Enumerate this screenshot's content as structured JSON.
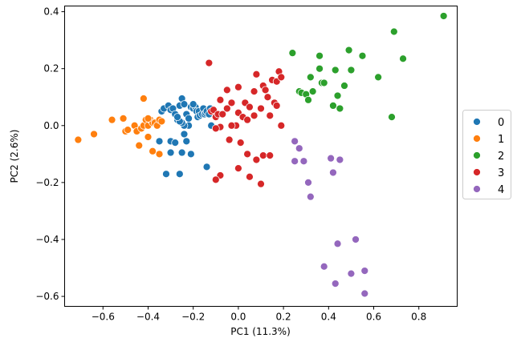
{
  "chart_data": {
    "type": "scatter",
    "title": "",
    "xlabel": "PC1 (11.3%)",
    "ylabel": "PC2 (2.6%)",
    "xlim": [
      -0.77,
      0.97
    ],
    "ylim": [
      -0.635,
      0.42
    ],
    "xticks": [
      -0.6,
      -0.4,
      -0.2,
      0.0,
      0.2,
      0.4,
      0.6,
      0.8
    ],
    "xtick_labels": [
      "−0.6",
      "−0.4",
      "−0.2",
      "0.0",
      "0.2",
      "0.4",
      "0.6",
      "0.8"
    ],
    "yticks": [
      -0.6,
      -0.4,
      -0.2,
      0.0,
      0.2,
      0.4
    ],
    "ytick_labels": [
      "−0.6",
      "−0.4",
      "−0.2",
      "0.0",
      "0.2",
      "0.4"
    ],
    "grid": false,
    "legend_position": "right-outside",
    "series": [
      {
        "name": "0",
        "color": "#1f77b4",
        "points": [
          [
            -0.34,
            0.05
          ],
          [
            -0.33,
            0.06
          ],
          [
            -0.31,
            0.07
          ],
          [
            -0.3,
            0.055
          ],
          [
            -0.29,
            0.06
          ],
          [
            -0.28,
            0.04
          ],
          [
            -0.27,
            0.02
          ],
          [
            -0.26,
            0.07
          ],
          [
            -0.25,
            0.095
          ],
          [
            -0.24,
            0.075
          ],
          [
            -0.23,
            0.04
          ],
          [
            -0.22,
            0.025
          ],
          [
            -0.21,
            0.065
          ],
          [
            -0.2,
            0.06
          ],
          [
            -0.19,
            0.065
          ],
          [
            -0.185,
            0.05
          ],
          [
            -0.18,
            0.03
          ],
          [
            -0.175,
            0.05
          ],
          [
            -0.17,
            0.035
          ],
          [
            -0.16,
            0.04
          ],
          [
            -0.155,
            0.06
          ],
          [
            -0.15,
            0.04
          ],
          [
            -0.145,
            0.045
          ],
          [
            -0.14,
            0.05
          ],
          [
            -0.13,
            0.04
          ],
          [
            -0.125,
            0.06
          ],
          [
            -0.2,
            0.075
          ],
          [
            -0.22,
            0.0
          ],
          [
            -0.24,
            0.0
          ],
          [
            -0.25,
            0.01
          ],
          [
            -0.26,
            0.015
          ],
          [
            -0.27,
            0.03
          ],
          [
            -0.3,
            -0.055
          ],
          [
            -0.28,
            -0.06
          ],
          [
            -0.23,
            -0.055
          ],
          [
            -0.35,
            -0.055
          ],
          [
            -0.3,
            -0.095
          ],
          [
            -0.25,
            -0.095
          ],
          [
            -0.21,
            -0.1
          ],
          [
            -0.24,
            -0.03
          ],
          [
            -0.32,
            -0.17
          ],
          [
            -0.26,
            -0.17
          ],
          [
            -0.14,
            -0.145
          ],
          [
            -0.12,
            0.0
          ]
        ]
      },
      {
        "name": "1",
        "color": "#ff7f0e",
        "points": [
          [
            -0.71,
            -0.05
          ],
          [
            -0.64,
            -0.03
          ],
          [
            -0.56,
            0.02
          ],
          [
            -0.51,
            0.025
          ],
          [
            -0.5,
            -0.02
          ],
          [
            -0.49,
            -0.015
          ],
          [
            -0.46,
            0.0
          ],
          [
            -0.45,
            -0.02
          ],
          [
            -0.43,
            -0.01
          ],
          [
            -0.42,
            0.0
          ],
          [
            -0.41,
            0.02
          ],
          [
            -0.4,
            0.0
          ],
          [
            -0.39,
            0.02
          ],
          [
            -0.38,
            0.01
          ],
          [
            -0.37,
            0.01
          ],
          [
            -0.36,
            0.0
          ],
          [
            -0.35,
            0.02
          ],
          [
            -0.34,
            0.015
          ],
          [
            -0.4,
            0.025
          ],
          [
            -0.42,
            0.095
          ],
          [
            -0.44,
            -0.07
          ],
          [
            -0.4,
            -0.04
          ],
          [
            -0.38,
            -0.09
          ],
          [
            -0.35,
            -0.1
          ]
        ]
      },
      {
        "name": "2",
        "color": "#2ca02c",
        "points": [
          [
            0.24,
            0.255
          ],
          [
            0.27,
            0.12
          ],
          [
            0.28,
            0.115
          ],
          [
            0.3,
            0.11
          ],
          [
            0.31,
            0.09
          ],
          [
            0.32,
            0.17
          ],
          [
            0.33,
            0.12
          ],
          [
            0.36,
            0.245
          ],
          [
            0.36,
            0.2
          ],
          [
            0.37,
            0.15
          ],
          [
            0.38,
            0.15
          ],
          [
            0.42,
            0.07
          ],
          [
            0.43,
            0.195
          ],
          [
            0.44,
            0.105
          ],
          [
            0.45,
            0.06
          ],
          [
            0.47,
            0.14
          ],
          [
            0.49,
            0.265
          ],
          [
            0.5,
            0.195
          ],
          [
            0.55,
            0.245
          ],
          [
            0.62,
            0.17
          ],
          [
            0.68,
            0.03
          ],
          [
            0.69,
            0.33
          ],
          [
            0.73,
            0.235
          ],
          [
            0.91,
            0.385
          ]
        ]
      },
      {
        "name": "3",
        "color": "#d62728",
        "points": [
          [
            -0.13,
            0.22
          ],
          [
            -0.12,
            0.05
          ],
          [
            -0.11,
            0.055
          ],
          [
            -0.1,
            0.03
          ],
          [
            -0.09,
            0.04
          ],
          [
            -0.08,
            0.09
          ],
          [
            -0.07,
            0.04
          ],
          [
            -0.05,
            0.06
          ],
          [
            -0.05,
            0.125
          ],
          [
            -0.03,
            0.08
          ],
          [
            -0.01,
            0.0
          ],
          [
            0.0,
            0.045
          ],
          [
            0.0,
            0.135
          ],
          [
            0.02,
            0.03
          ],
          [
            0.03,
            0.08
          ],
          [
            0.04,
            0.02
          ],
          [
            0.05,
            0.065
          ],
          [
            0.07,
            0.035
          ],
          [
            0.08,
            0.18
          ],
          [
            0.1,
            0.06
          ],
          [
            0.11,
            0.14
          ],
          [
            0.12,
            0.125
          ],
          [
            0.13,
            0.1
          ],
          [
            0.14,
            0.035
          ],
          [
            0.15,
            0.16
          ],
          [
            0.16,
            0.08
          ],
          [
            0.17,
            0.155
          ],
          [
            0.18,
            0.19
          ],
          [
            0.19,
            0.17
          ],
          [
            0.17,
            0.07
          ],
          [
            0.19,
            0.0
          ],
          [
            -0.03,
            0.0
          ],
          [
            -0.08,
            -0.005
          ],
          [
            -0.1,
            -0.01
          ],
          [
            -0.04,
            -0.05
          ],
          [
            0.01,
            -0.06
          ],
          [
            0.04,
            -0.1
          ],
          [
            0.11,
            -0.105
          ],
          [
            0.14,
            -0.105
          ],
          [
            0.05,
            -0.18
          ],
          [
            0.1,
            -0.205
          ],
          [
            -0.08,
            -0.175
          ],
          [
            -0.1,
            -0.19
          ],
          [
            0.0,
            -0.15
          ],
          [
            0.08,
            -0.12
          ],
          [
            0.07,
            0.12
          ]
        ]
      },
      {
        "name": "4",
        "color": "#9467bd",
        "points": [
          [
            0.25,
            -0.055
          ],
          [
            0.27,
            -0.08
          ],
          [
            0.25,
            -0.125
          ],
          [
            0.29,
            -0.125
          ],
          [
            0.31,
            -0.2
          ],
          [
            0.32,
            -0.25
          ],
          [
            0.41,
            -0.115
          ],
          [
            0.42,
            -0.165
          ],
          [
            0.45,
            -0.12
          ],
          [
            0.38,
            -0.495
          ],
          [
            0.43,
            -0.555
          ],
          [
            0.44,
            -0.415
          ],
          [
            0.5,
            -0.52
          ],
          [
            0.52,
            -0.4
          ],
          [
            0.56,
            -0.51
          ],
          [
            0.56,
            -0.59
          ]
        ]
      }
    ]
  }
}
